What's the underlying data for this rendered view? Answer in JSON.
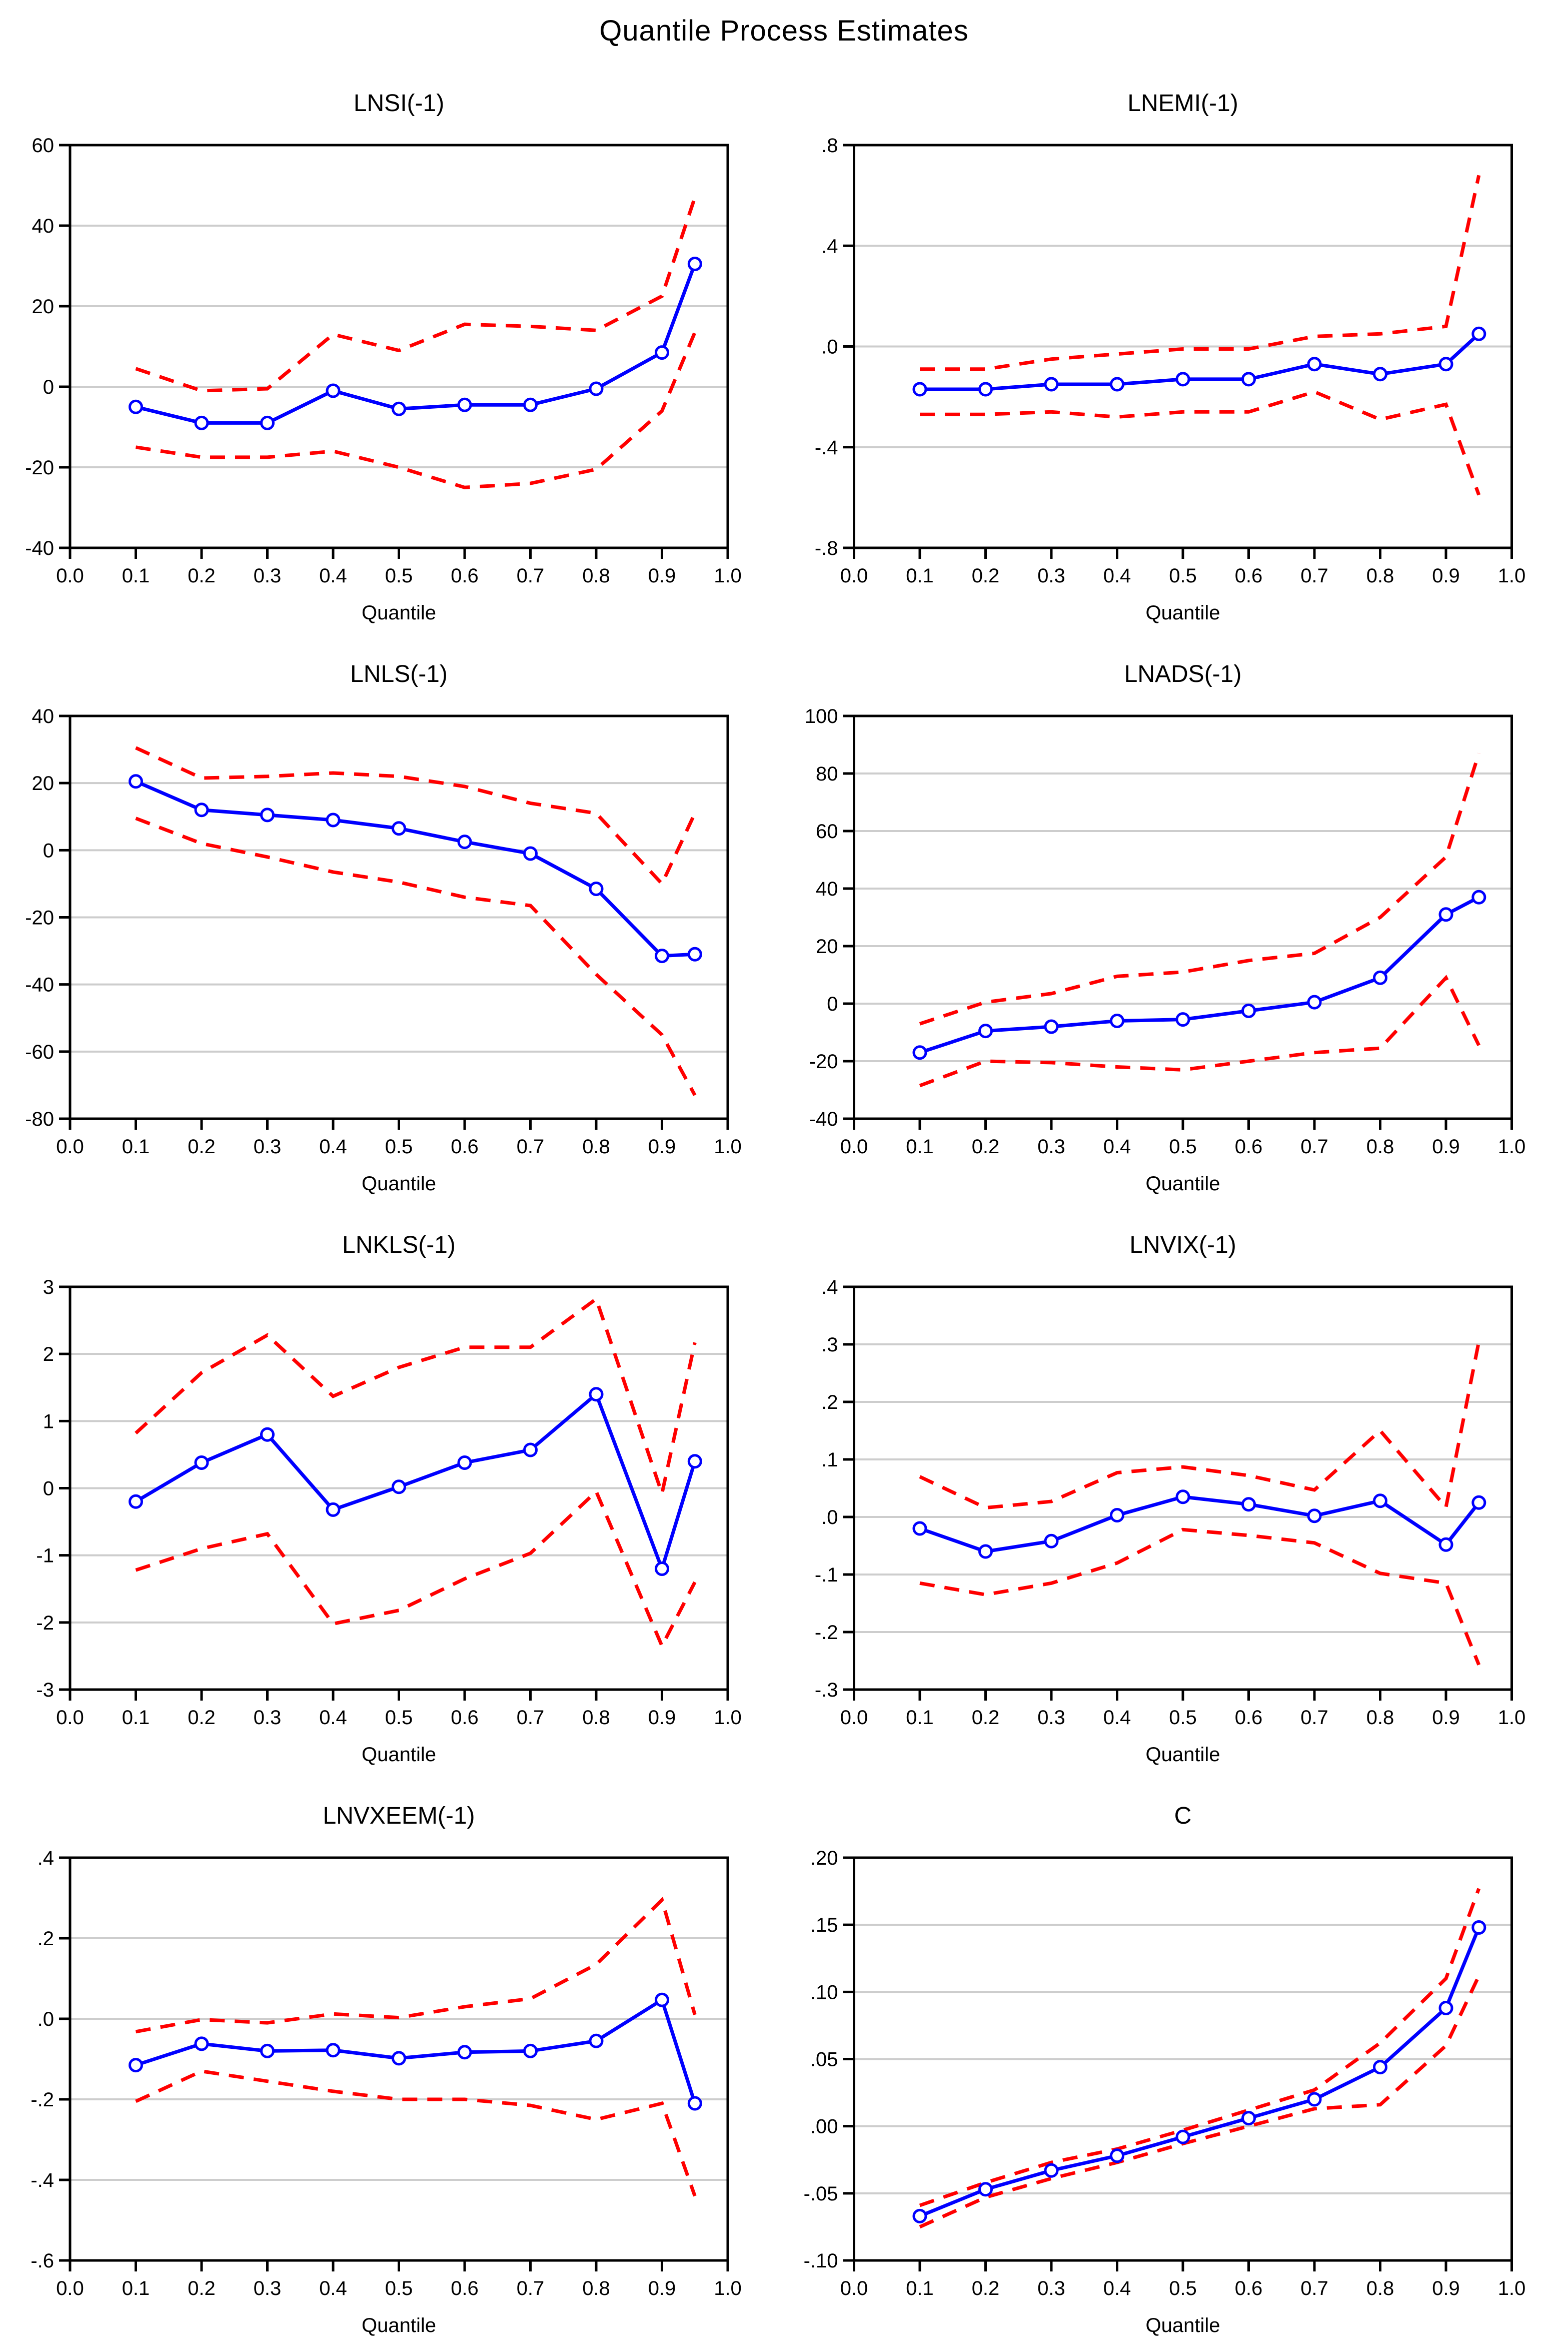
{
  "figure_title": "Quantile Process Estimates",
  "x_axis": {
    "label": "Quantile",
    "lim": [
      0.0,
      1.0
    ],
    "tick_labels": [
      "0.0",
      "0.1",
      "0.2",
      "0.3",
      "0.4",
      "0.5",
      "0.6",
      "0.7",
      "0.8",
      "0.9",
      "1.0"
    ]
  },
  "colors": {
    "estimate_line": "#0000ff",
    "confidence_band": "#ff0000",
    "gridline": "#cdcdcd",
    "axis": "#000000",
    "marker_fill": "#ffffff",
    "background": "#ffffff"
  },
  "legend": {
    "shown": false
  },
  "chart_data": [
    {
      "type": "line",
      "title": "LNSI(-1)",
      "xlabel": "Quantile",
      "x": [
        0.1,
        0.2,
        0.3,
        0.4,
        0.5,
        0.6,
        0.7,
        0.8,
        0.9,
        0.95
      ],
      "xlim": [
        0.0,
        1.0
      ],
      "ylim": [
        -40,
        60
      ],
      "ytick_values": [
        60,
        40,
        20,
        0,
        -20,
        -40
      ],
      "ytick_labels": [
        "60",
        "40",
        "20",
        "0",
        "-20",
        "-40"
      ],
      "grid": true,
      "series": [
        {
          "name": "estimate",
          "style": "solid",
          "markers": true,
          "values": [
            -5.0,
            -9.0,
            -9.0,
            -1.0,
            -5.5,
            -4.5,
            -4.5,
            -0.5,
            8.5,
            30.5
          ]
        },
        {
          "name": "upper_ci",
          "style": "dashed",
          "markers": false,
          "values": [
            4.5,
            -1.0,
            -0.5,
            13.0,
            9.0,
            15.5,
            15.0,
            14.0,
            22.5,
            47.0
          ]
        },
        {
          "name": "lower_ci",
          "style": "dashed",
          "markers": false,
          "values": [
            -15.0,
            -17.5,
            -17.5,
            -16.0,
            -20.0,
            -25.0,
            -24.0,
            -20.5,
            -6.0,
            13.5
          ]
        }
      ]
    },
    {
      "type": "line",
      "title": "LNEMI(-1)",
      "xlabel": "Quantile",
      "x": [
        0.1,
        0.2,
        0.3,
        0.4,
        0.5,
        0.6,
        0.7,
        0.8,
        0.9,
        0.95
      ],
      "xlim": [
        0.0,
        1.0
      ],
      "ylim": [
        -0.8,
        0.8
      ],
      "ytick_values": [
        0.8,
        0.4,
        0.0,
        -0.4,
        -0.8
      ],
      "ytick_labels": [
        ".8",
        ".4",
        ".0",
        "-.4",
        "-.8"
      ],
      "grid": true,
      "series": [
        {
          "name": "estimate",
          "style": "solid",
          "markers": true,
          "values": [
            -0.17,
            -0.17,
            -0.15,
            -0.15,
            -0.13,
            -0.13,
            -0.07,
            -0.11,
            -0.07,
            0.05
          ]
        },
        {
          "name": "upper_ci",
          "style": "dashed",
          "markers": false,
          "values": [
            -0.09,
            -0.09,
            -0.05,
            -0.03,
            -0.01,
            -0.01,
            0.04,
            0.05,
            0.08,
            0.68
          ]
        },
        {
          "name": "lower_ci",
          "style": "dashed",
          "markers": false,
          "values": [
            -0.27,
            -0.27,
            -0.26,
            -0.28,
            -0.26,
            -0.26,
            -0.18,
            -0.29,
            -0.23,
            -0.59
          ]
        }
      ]
    },
    {
      "type": "line",
      "title": "LNLS(-1)",
      "xlabel": "Quantile",
      "x": [
        0.1,
        0.2,
        0.3,
        0.4,
        0.5,
        0.6,
        0.7,
        0.8,
        0.9,
        0.95
      ],
      "xlim": [
        0.0,
        1.0
      ],
      "ylim": [
        -80,
        40
      ],
      "ytick_values": [
        40,
        20,
        0,
        -20,
        -40,
        -60,
        -80
      ],
      "ytick_labels": [
        "40",
        "20",
        "0",
        "-20",
        "-40",
        "-60",
        "-80"
      ],
      "grid": true,
      "series": [
        {
          "name": "estimate",
          "style": "solid",
          "markers": true,
          "values": [
            20.5,
            12.0,
            10.5,
            9.0,
            6.5,
            2.5,
            -1.0,
            -11.5,
            -31.5,
            -31.0
          ]
        },
        {
          "name": "upper_ci",
          "style": "dashed",
          "markers": false,
          "values": [
            30.5,
            21.5,
            22.0,
            23.0,
            22.0,
            19.0,
            14.0,
            11.0,
            -10.0,
            11.0
          ]
        },
        {
          "name": "lower_ci",
          "style": "dashed",
          "markers": false,
          "values": [
            9.5,
            2.0,
            -2.0,
            -6.5,
            -9.5,
            -14.0,
            -16.5,
            -37.0,
            -55.0,
            -73.0
          ]
        }
      ]
    },
    {
      "type": "line",
      "title": "LNADS(-1)",
      "xlabel": "Quantile",
      "x": [
        0.1,
        0.2,
        0.3,
        0.4,
        0.5,
        0.6,
        0.7,
        0.8,
        0.9,
        0.95
      ],
      "xlim": [
        0.0,
        1.0
      ],
      "ylim": [
        -40,
        100
      ],
      "ytick_values": [
        100,
        80,
        60,
        40,
        20,
        0,
        -20,
        -40
      ],
      "ytick_labels": [
        "100",
        "80",
        "60",
        "40",
        "20",
        "0",
        "-20",
        "-40"
      ],
      "grid": true,
      "series": [
        {
          "name": "estimate",
          "style": "solid",
          "markers": true,
          "values": [
            -17.0,
            -9.5,
            -8.0,
            -6.0,
            -5.5,
            -2.5,
            0.5,
            9.0,
            31.0,
            37.0
          ]
        },
        {
          "name": "upper_ci",
          "style": "dashed",
          "markers": false,
          "values": [
            -7.0,
            0.5,
            3.5,
            9.5,
            11.0,
            15.0,
            17.5,
            30.0,
            51.0,
            87.0
          ]
        },
        {
          "name": "lower_ci",
          "style": "dashed",
          "markers": false,
          "values": [
            -28.5,
            -20.0,
            -20.5,
            -22.0,
            -23.0,
            -20.0,
            -17.0,
            -15.5,
            9.0,
            -14.5
          ]
        }
      ]
    },
    {
      "type": "line",
      "title": "LNKLS(-1)",
      "xlabel": "Quantile",
      "x": [
        0.1,
        0.2,
        0.3,
        0.4,
        0.5,
        0.6,
        0.7,
        0.8,
        0.9,
        0.95
      ],
      "xlim": [
        0.0,
        1.0
      ],
      "ylim": [
        -3,
        3
      ],
      "ytick_values": [
        3,
        2,
        1,
        0,
        -1,
        -2,
        -3
      ],
      "ytick_labels": [
        "3",
        "2",
        "1",
        "0",
        "-1",
        "-2",
        "-3"
      ],
      "grid": true,
      "series": [
        {
          "name": "estimate",
          "style": "solid",
          "markers": true,
          "values": [
            -0.2,
            0.38,
            0.8,
            -0.32,
            0.02,
            0.38,
            0.57,
            1.4,
            -1.2,
            0.4
          ]
        },
        {
          "name": "upper_ci",
          "style": "dashed",
          "markers": false,
          "values": [
            0.82,
            1.72,
            2.28,
            1.37,
            1.8,
            2.1,
            2.1,
            2.82,
            -0.08,
            2.17
          ]
        },
        {
          "name": "lower_ci",
          "style": "dashed",
          "markers": false,
          "values": [
            -1.22,
            -0.9,
            -0.68,
            -2.02,
            -1.82,
            -1.35,
            -0.97,
            -0.05,
            -2.35,
            -1.4
          ]
        }
      ]
    },
    {
      "type": "line",
      "title": "LNVIX(-1)",
      "xlabel": "Quantile",
      "x": [
        0.1,
        0.2,
        0.3,
        0.4,
        0.5,
        0.6,
        0.7,
        0.8,
        0.9,
        0.95
      ],
      "xlim": [
        0.0,
        1.0
      ],
      "ylim": [
        -0.3,
        0.4
      ],
      "ytick_values": [
        0.4,
        0.3,
        0.2,
        0.1,
        0.0,
        -0.1,
        -0.2,
        -0.3
      ],
      "ytick_labels": [
        ".4",
        ".3",
        ".2",
        ".1",
        ".0",
        "-.1",
        "-.2",
        "-.3"
      ],
      "grid": true,
      "series": [
        {
          "name": "estimate",
          "style": "solid",
          "markers": true,
          "values": [
            -0.02,
            -0.06,
            -0.042,
            0.003,
            0.035,
            0.022,
            0.002,
            0.028,
            -0.048,
            0.025
          ]
        },
        {
          "name": "upper_ci",
          "style": "dashed",
          "markers": false,
          "values": [
            0.07,
            0.016,
            0.027,
            0.077,
            0.087,
            0.072,
            0.047,
            0.15,
            0.017,
            0.305
          ]
        },
        {
          "name": "lower_ci",
          "style": "dashed",
          "markers": false,
          "values": [
            -0.115,
            -0.135,
            -0.115,
            -0.08,
            -0.022,
            -0.032,
            -0.045,
            -0.098,
            -0.115,
            -0.257
          ]
        }
      ]
    },
    {
      "type": "line",
      "title": "LNVXEEM(-1)",
      "xlabel": "Quantile",
      "x": [
        0.1,
        0.2,
        0.3,
        0.4,
        0.5,
        0.6,
        0.7,
        0.8,
        0.9,
        0.95
      ],
      "xlim": [
        0.0,
        1.0
      ],
      "ylim": [
        -0.6,
        0.4
      ],
      "ytick_values": [
        0.4,
        0.2,
        0.0,
        -0.2,
        -0.4,
        -0.6
      ],
      "ytick_labels": [
        ".4",
        ".2",
        ".0",
        "-.2",
        "-.4",
        "-.6"
      ],
      "grid": true,
      "series": [
        {
          "name": "estimate",
          "style": "solid",
          "markers": true,
          "values": [
            -0.115,
            -0.062,
            -0.08,
            -0.078,
            -0.098,
            -0.083,
            -0.08,
            -0.055,
            0.047,
            -0.21
          ]
        },
        {
          "name": "upper_ci",
          "style": "dashed",
          "markers": false,
          "values": [
            -0.032,
            -0.002,
            -0.01,
            0.012,
            0.003,
            0.03,
            0.05,
            0.135,
            0.295,
            0.01
          ]
        },
        {
          "name": "lower_ci",
          "style": "dashed",
          "markers": false,
          "values": [
            -0.205,
            -0.13,
            -0.155,
            -0.18,
            -0.2,
            -0.2,
            -0.215,
            -0.25,
            -0.21,
            -0.44
          ]
        }
      ]
    },
    {
      "type": "line",
      "title": "C",
      "xlabel": "Quantile",
      "x": [
        0.1,
        0.2,
        0.3,
        0.4,
        0.5,
        0.6,
        0.7,
        0.8,
        0.9,
        0.95
      ],
      "xlim": [
        0.0,
        1.0
      ],
      "ylim": [
        -0.1,
        0.2
      ],
      "ytick_values": [
        0.2,
        0.15,
        0.1,
        0.05,
        0.0,
        -0.05,
        -0.1
      ],
      "ytick_labels": [
        ".20",
        ".15",
        ".10",
        ".05",
        ".00",
        "-.05",
        "-.10"
      ],
      "grid": true,
      "series": [
        {
          "name": "estimate",
          "style": "solid",
          "markers": true,
          "values": [
            -0.067,
            -0.047,
            -0.033,
            -0.022,
            -0.008,
            0.006,
            0.02,
            0.044,
            0.088,
            0.148
          ]
        },
        {
          "name": "upper_ci",
          "style": "dashed",
          "markers": false,
          "values": [
            -0.059,
            -0.042,
            -0.027,
            -0.017,
            -0.003,
            0.012,
            0.027,
            0.062,
            0.11,
            0.177
          ]
        },
        {
          "name": "lower_ci",
          "style": "dashed",
          "markers": false,
          "values": [
            -0.075,
            -0.053,
            -0.039,
            -0.027,
            -0.013,
            0.0,
            0.013,
            0.016,
            0.06,
            0.112
          ]
        }
      ]
    }
  ]
}
